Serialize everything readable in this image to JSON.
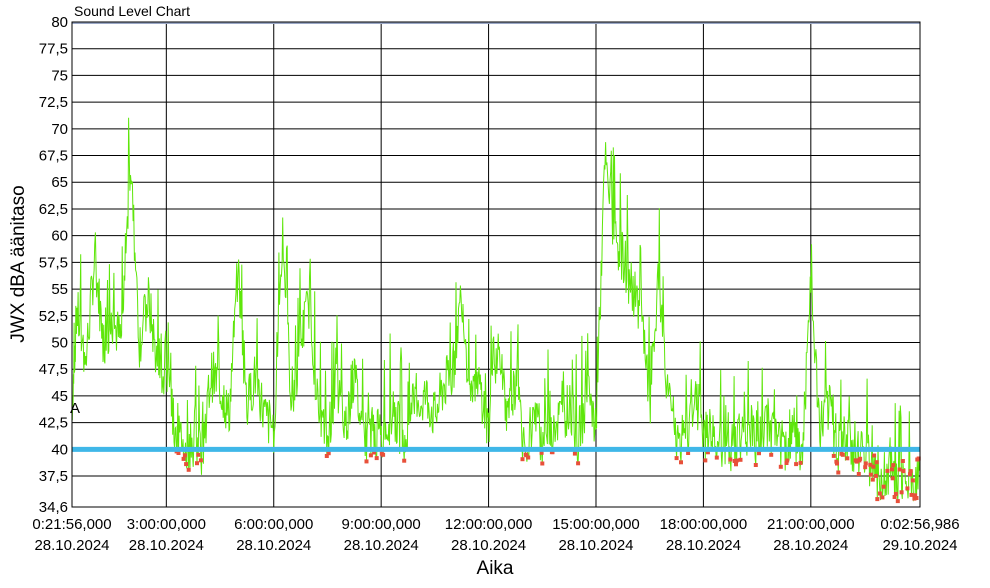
{
  "chart_data": {
    "type": "line",
    "title": "Sound Level Chart",
    "xlabel": "Aika",
    "ylabel": "JWX dBA äänitaso",
    "xlim": [
      "28.10.2024 0:21:56,000",
      "29.10.2024 0:02:56,986"
    ],
    "ylim": [
      34.6,
      80
    ],
    "y_ticks": [
      "34,6",
      "37,5",
      "40",
      "42,5",
      "45",
      "47,5",
      "50",
      "52,5",
      "55",
      "57,5",
      "60",
      "62,5",
      "65",
      "67,5",
      "70",
      "72,5",
      "75",
      "77,5",
      "80"
    ],
    "x_ticks": [
      {
        "time": "0:21:56,000",
        "date": "28.10.2024"
      },
      {
        "time": "3:00:00,000",
        "date": "28.10.2024"
      },
      {
        "time": "6:00:00,000",
        "date": "28.10.2024"
      },
      {
        "time": "9:00:00,000",
        "date": "28.10.2024"
      },
      {
        "time": "12:00:00,000",
        "date": "28.10.2024"
      },
      {
        "time": "15:00:00,000",
        "date": "28.10.2024"
      },
      {
        "time": "18:00:00,000",
        "date": "28.10.2024"
      },
      {
        "time": "21:00:00,000",
        "date": "28.10.2024"
      },
      {
        "time": "0:02:56,986",
        "date": "29.10.2024"
      }
    ],
    "grid": true,
    "threshold": {
      "value": 40,
      "color": "#3fb7e8"
    },
    "series_color": "#5ee60a",
    "marker_color": "#e8503a",
    "marker_label": "A",
    "series": [
      {
        "x": [
          "0:21",
          "0:30",
          "0:45",
          "1:00",
          "1:15",
          "1:30",
          "1:45",
          "2:00",
          "2:15",
          "2:30",
          "2:45",
          "3:00",
          "3:15",
          "3:30",
          "3:45",
          "4:00",
          "4:15",
          "4:30",
          "4:45",
          "5:00",
          "5:15",
          "5:30",
          "5:45",
          "6:00",
          "6:15",
          "6:30",
          "6:45",
          "7:00",
          "7:15",
          "7:30",
          "7:45",
          "8:00",
          "8:15",
          "8:30",
          "8:45",
          "9:00",
          "9:15",
          "9:30",
          "9:45",
          "10:00",
          "10:15",
          "10:30",
          "10:45",
          "11:00",
          "11:15",
          "11:30",
          "11:45",
          "12:00",
          "12:15",
          "12:30",
          "12:45",
          "13:00",
          "13:15",
          "13:30",
          "13:45",
          "14:00",
          "14:15",
          "14:30",
          "14:45",
          "15:00",
          "15:15",
          "15:30",
          "15:45",
          "16:00",
          "16:15",
          "16:30",
          "16:45",
          "17:00",
          "17:15",
          "17:30",
          "17:45",
          "18:00",
          "18:15",
          "18:30",
          "18:45",
          "19:00",
          "19:15",
          "19:30",
          "19:45",
          "20:00",
          "20:15",
          "20:30",
          "20:45",
          "21:00",
          "21:15",
          "21:30",
          "21:45",
          "22:00",
          "22:15",
          "22:30",
          "22:45",
          "23:00",
          "23:15",
          "23:30",
          "23:45",
          "0:02"
        ],
        "values": [
          44,
          53,
          48,
          58,
          50,
          52,
          50,
          67,
          50,
          54,
          48,
          46,
          42,
          41,
          40,
          40,
          47,
          46,
          43,
          57,
          44,
          47,
          43,
          42,
          60,
          44,
          50,
          54,
          43,
          41,
          46,
          42,
          47,
          41,
          42,
          41,
          43,
          42,
          41,
          44,
          45,
          43,
          46,
          47,
          55,
          44,
          46,
          42,
          50,
          42,
          46,
          40,
          43,
          41,
          42,
          43,
          44,
          41,
          45,
          42,
          67,
          60,
          58,
          55,
          53,
          44,
          56,
          45,
          41,
          41,
          45,
          41,
          42,
          40,
          40,
          41,
          42,
          40,
          43,
          41,
          40,
          42,
          39,
          55,
          42,
          44,
          40,
          41,
          39,
          40,
          38,
          36,
          38,
          37,
          36,
          38
        ]
      }
    ]
  }
}
